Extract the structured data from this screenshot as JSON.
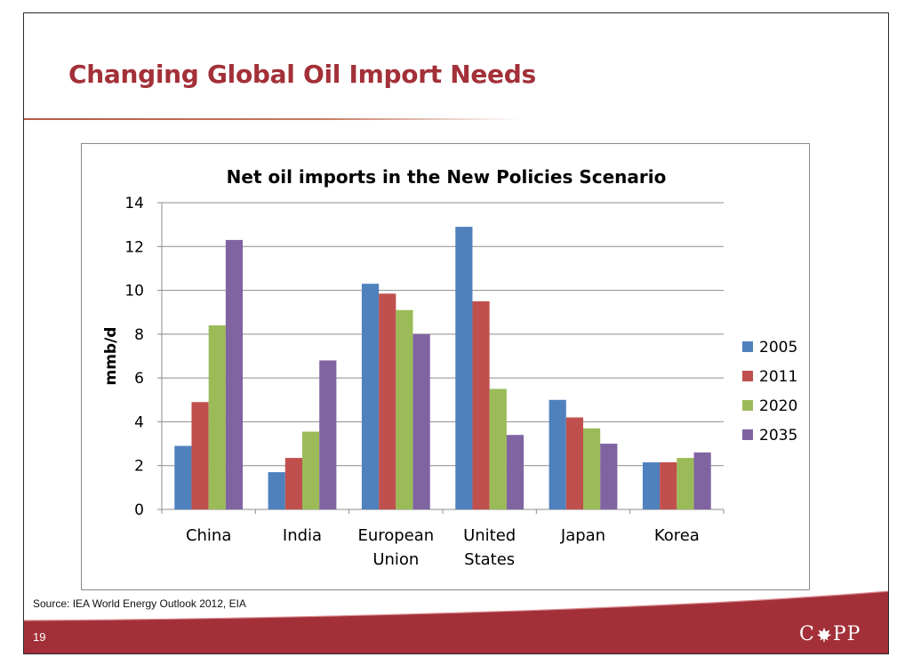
{
  "slide": {
    "title": "Changing Global Oil Import Needs",
    "source": "Source: IEA World Energy Outlook 2012, EIA",
    "page_number": "19",
    "logo": {
      "prefix": "C",
      "suffix": "PP",
      "icon": "maple-leaf-icon"
    },
    "colors": {
      "title": "#a33038",
      "band": "#a33038"
    }
  },
  "chart_data": {
    "type": "bar",
    "title": "Net oil imports in the New Policies Scenario",
    "xlabel": "",
    "ylabel": "mmb/d",
    "ylim": [
      0,
      14
    ],
    "yticks": [
      0,
      2,
      4,
      6,
      8,
      10,
      12,
      14
    ],
    "grid": true,
    "legend_position": "right",
    "categories": [
      [
        "China"
      ],
      [
        "India"
      ],
      [
        "European",
        "Union"
      ],
      [
        "United",
        "States"
      ],
      [
        "Japan"
      ],
      [
        "Korea"
      ]
    ],
    "series": [
      {
        "name": "2005",
        "color": "#4f81bd",
        "values": [
          2.9,
          1.7,
          10.3,
          12.9,
          5.0,
          2.15
        ]
      },
      {
        "name": "2011",
        "color": "#c0504d",
        "values": [
          4.9,
          2.35,
          9.85,
          9.5,
          4.2,
          2.15
        ]
      },
      {
        "name": "2020",
        "color": "#9bbb59",
        "values": [
          8.4,
          3.55,
          9.1,
          5.5,
          3.7,
          2.35
        ]
      },
      {
        "name": "2035",
        "color": "#8064a2",
        "values": [
          12.3,
          6.8,
          8.0,
          3.4,
          3.0,
          2.6
        ]
      }
    ]
  }
}
